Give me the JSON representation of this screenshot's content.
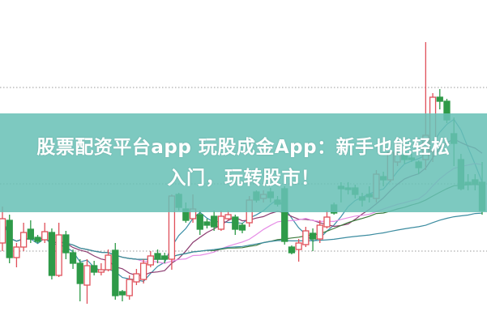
{
  "headline": {
    "line1": "股票配资平台app 玩股成金App：新手也能轻松",
    "line2": "入门，玩转股市！"
  },
  "colors": {
    "up": "#e0505a",
    "down": "#2e9a48",
    "banner": "#68c0b6",
    "ma_lines": [
      "#3c8fa8",
      "#8c3c70",
      "#e68ce6",
      "#3c7a3c",
      "#3c8ca0"
    ],
    "gridline": "#999999"
  },
  "chart_data": {
    "type": "candlestick",
    "title": "",
    "xlabel": "",
    "ylabel": "",
    "ylim": [
      0,
      400
    ],
    "grid": "dotted horizontal",
    "moving_averages": [
      5,
      10,
      20,
      30,
      60
    ],
    "reference_levels": [
      292,
      173,
      90
    ],
    "ohlc": [
      [
        100,
        145,
        90,
        130
      ],
      [
        128,
        135,
        75,
        82
      ],
      [
        82,
        100,
        70,
        95
      ],
      [
        95,
        125,
        90,
        113
      ],
      [
        117,
        128,
        100,
        105
      ],
      [
        107,
        110,
        100,
        102
      ],
      [
        104,
        125,
        100,
        114
      ],
      [
        113,
        118,
        55,
        60
      ],
      [
        60,
        125,
        58,
        110
      ],
      [
        110,
        115,
        80,
        88
      ],
      [
        88,
        92,
        68,
        75
      ],
      [
        75,
        80,
        28,
        50
      ],
      [
        48,
        80,
        25,
        72
      ],
      [
        72,
        78,
        60,
        64
      ],
      [
        64,
        75,
        60,
        67
      ],
      [
        67,
        92,
        65,
        85
      ],
      [
        91,
        100,
        30,
        35
      ],
      [
        40,
        42,
        28,
        36
      ],
      [
        35,
        60,
        30,
        55
      ],
      [
        52,
        68,
        48,
        62
      ],
      [
        55,
        80,
        50,
        75
      ],
      [
        73,
        90,
        70,
        84
      ],
      [
        87,
        92,
        75,
        80
      ],
      [
        84,
        88,
        75,
        80
      ],
      [
        80,
        160,
        67,
        158
      ],
      [
        160,
        162,
        140,
        144
      ],
      [
        142,
        150,
        125,
        128
      ],
      [
        130,
        160,
        125,
        142
      ],
      [
        135,
        140,
        110,
        117
      ],
      [
        126,
        130,
        118,
        122
      ],
      [
        133,
        140,
        115,
        120
      ],
      [
        117,
        140,
        115,
        133
      ],
      [
        130,
        140,
        128,
        135
      ],
      [
        132,
        135,
        110,
        117
      ],
      [
        122,
        125,
        112,
        116
      ],
      [
        125,
        158,
        120,
        153
      ],
      [
        163,
        165,
        150,
        153
      ],
      [
        155,
        165,
        150,
        160
      ],
      [
        163,
        168,
        150,
        156
      ],
      [
        153,
        158,
        145,
        148
      ],
      [
        167,
        170,
        98,
        102
      ],
      [
        95,
        97,
        86,
        88
      ],
      [
        92,
        105,
        77,
        100
      ],
      [
        98,
        120,
        95,
        115
      ],
      [
        112,
        118,
        90,
        105
      ],
      [
        105,
        128,
        100,
        122
      ],
      [
        120,
        140,
        118,
        132
      ],
      [
        147,
        150,
        135,
        137
      ],
      [
        170,
        175,
        150,
        167
      ],
      [
        168,
        175,
        160,
        166
      ],
      [
        168,
        172,
        155,
        160
      ],
      [
        157,
        162,
        145,
        153
      ],
      [
        160,
        170,
        150,
        157
      ],
      [
        155,
        190,
        150,
        185
      ],
      [
        182,
        188,
        170,
        178
      ],
      [
        178,
        215,
        175,
        212
      ],
      [
        200,
        225,
        195,
        210
      ],
      [
        208,
        212,
        198,
        203
      ],
      [
        205,
        210,
        200,
        203
      ],
      [
        200,
        202,
        185,
        193
      ],
      [
        203,
        348,
        190,
        233
      ],
      [
        213,
        285,
        200,
        280
      ],
      [
        280,
        290,
        265,
        275
      ],
      [
        275,
        278,
        248,
        252
      ],
      [
        235,
        255,
        195,
        223
      ],
      [
        203,
        210,
        165,
        167
      ],
      [
        175,
        185,
        165,
        172
      ],
      [
        178,
        185,
        165,
        173
      ],
      [
        175,
        200,
        135,
        140
      ]
    ]
  }
}
